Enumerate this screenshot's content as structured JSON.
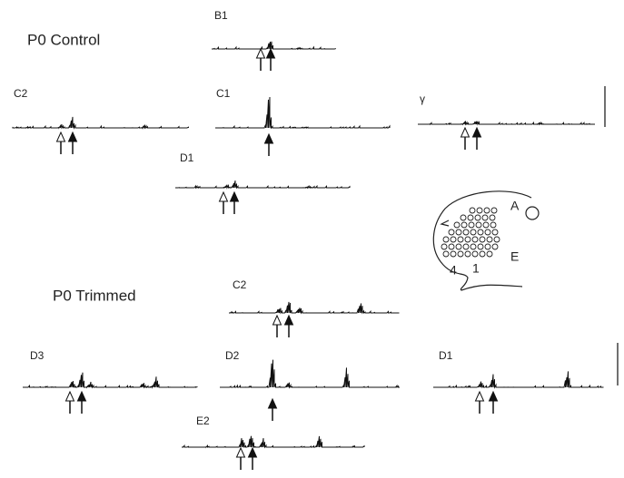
{
  "control": {
    "title": "P0 Control",
    "panels": [
      {
        "label": "B1"
      },
      {
        "label": "C2"
      },
      {
        "label": "C1"
      },
      {
        "label": "γ"
      },
      {
        "label": "D1"
      }
    ]
  },
  "trimmed": {
    "title": "P0 Trimmed",
    "panels": [
      {
        "label": "C2"
      },
      {
        "label": "D3"
      },
      {
        "label": "D2"
      },
      {
        "label": "D1"
      },
      {
        "label": "E2"
      }
    ]
  },
  "barrel_map": {
    "labels": [
      "A",
      "E",
      "4",
      "1"
    ]
  }
}
